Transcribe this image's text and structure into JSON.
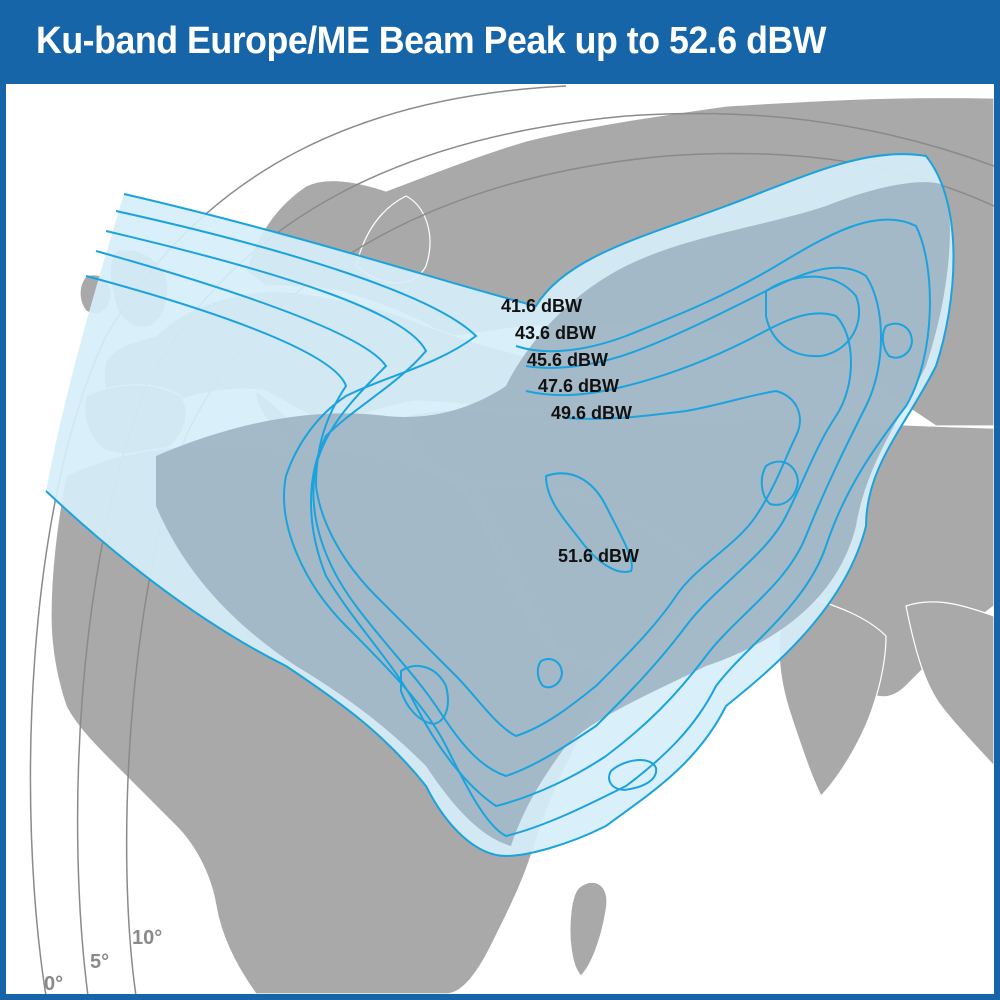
{
  "title": "Ku-band Europe/ME Beam Peak up to 52.6 dBW",
  "contours": [
    {
      "label": "41.6 dBW"
    },
    {
      "label": "43.6 dBW"
    },
    {
      "label": "45.6 dBW"
    },
    {
      "label": "47.6 dBW"
    },
    {
      "label": "49.6 dBW"
    },
    {
      "label": "51.6 dBW"
    }
  ],
  "elevation_labels": [
    "0°",
    "5°",
    "10°"
  ],
  "colors": {
    "header": "#1565a8",
    "land": "#a9a9a9",
    "contour_line": "#1aa3de",
    "beam_fill_light": "#d6eefa",
    "beam_fill_dark": "#9fb4c2",
    "border_line": "#ffffff"
  }
}
